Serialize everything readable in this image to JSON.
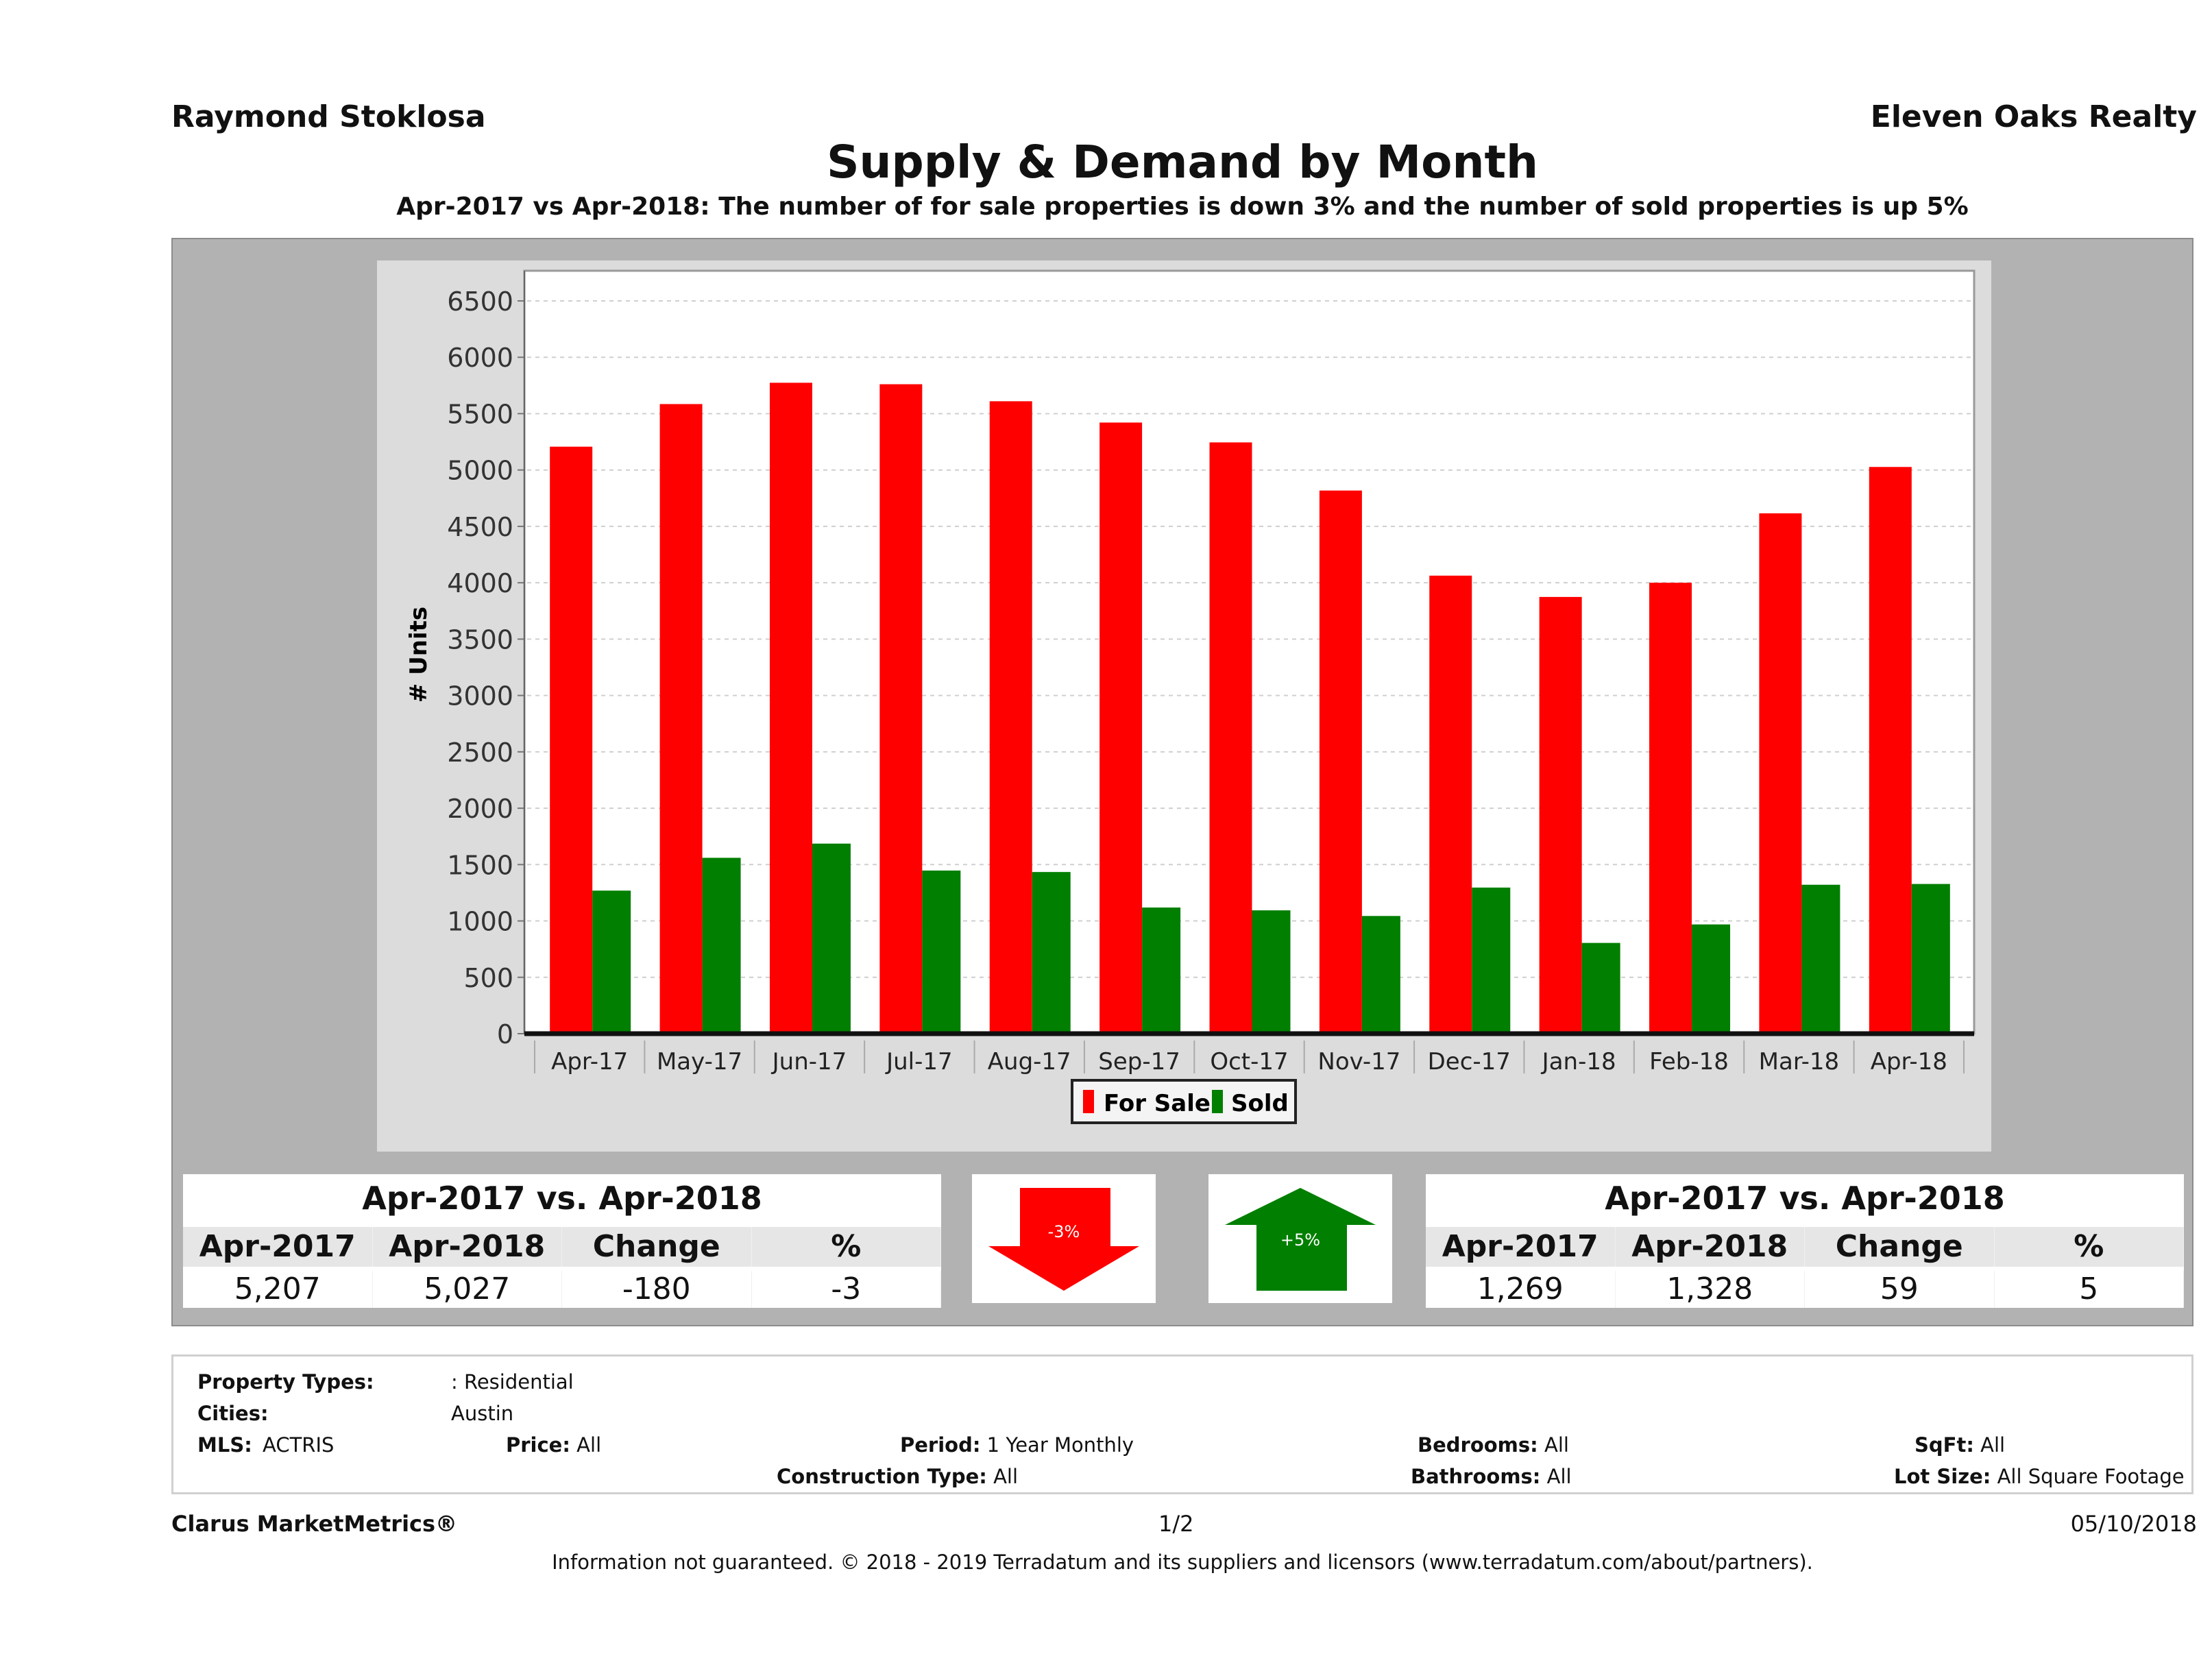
{
  "header": {
    "agent": "Raymond Stoklosa",
    "brokerage": "Eleven Oaks Realty",
    "title": "Supply & Demand by Month",
    "subtitle": "Apr-2017 vs Apr-2018: The number of for sale properties is down 3% and the number of sold properties is up 5%"
  },
  "chart_data": {
    "type": "bar",
    "title": "Supply & Demand by Month",
    "xlabel": "",
    "ylabel": "# Units",
    "ylim": [
      0,
      6500
    ],
    "yticks": [
      0,
      500,
      1000,
      1500,
      2000,
      2500,
      3000,
      3500,
      4000,
      4500,
      5000,
      5500,
      6000,
      6500
    ],
    "grid": true,
    "legend_position": "bottom-center",
    "categories": [
      "Apr-17",
      "May-17",
      "Jun-17",
      "Jul-17",
      "Aug-17",
      "Sep-17",
      "Oct-17",
      "Nov-17",
      "Dec-17",
      "Jan-18",
      "Feb-18",
      "Mar-18",
      "Apr-18"
    ],
    "series": [
      {
        "name": "For Sale",
        "color": "#ff0000",
        "values": [
          5207,
          5585,
          5774,
          5761,
          5610,
          5421,
          5245,
          4818,
          4063,
          3874,
          4000,
          4616,
          5027
        ]
      },
      {
        "name": "Sold",
        "color": "#007f00",
        "values": [
          1269,
          1560,
          1686,
          1447,
          1434,
          1119,
          1094,
          1044,
          1296,
          805,
          969,
          1321,
          1328
        ]
      }
    ]
  },
  "for_sale_table": {
    "caption": "Apr-2017 vs. Apr-2018",
    "headers": [
      "Apr-2017",
      "Apr-2018",
      "Change",
      "%"
    ],
    "values": [
      "5,207",
      "5,027",
      "-180",
      "-3"
    ],
    "arrow_label": "-3%",
    "arrow_direction": "down",
    "arrow_color": "#ff0000"
  },
  "sold_table": {
    "caption": "Apr-2017 vs. Apr-2018",
    "headers": [
      "Apr-2017",
      "Apr-2018",
      "Change",
      "%"
    ],
    "values": [
      "1,269",
      "1,328",
      "59",
      "5"
    ],
    "arrow_label": "+5%",
    "arrow_direction": "up",
    "arrow_color": "#007f00"
  },
  "criteria": {
    "property_types_label": "Property Types:",
    "property_types": ": Residential",
    "cities_label": "Cities:",
    "cities": "Austin",
    "mls_label": "MLS:",
    "mls": "ACTRIS",
    "price_label": "Price:",
    "price": "All",
    "period_label": "Period:",
    "period": "1 Year Monthly",
    "construction_label": "Construction Type:",
    "construction": "All",
    "bedrooms_label": "Bedrooms:",
    "bedrooms": "All",
    "bathrooms_label": "Bathrooms:",
    "bathrooms": "All",
    "sqft_label": "SqFt:",
    "sqft": "All",
    "lot_label": "Lot Size:",
    "lot": "All Square Footage"
  },
  "footer": {
    "product": "Clarus MarketMetrics®",
    "page": "1/2",
    "date": "05/10/2018",
    "disclaimer": "Information not guaranteed. © 2018 - 2019 Terradatum and its suppliers and licensors (www.terradatum.com/about/partners)."
  }
}
